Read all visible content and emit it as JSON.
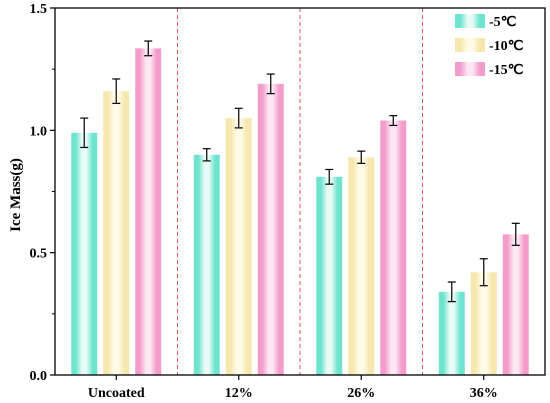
{
  "chart_data": {
    "type": "bar",
    "categories": [
      "Uncoated",
      "12%",
      "26%",
      "36%"
    ],
    "ylabel": "Ice Mass(g)",
    "xlabel": "",
    "ylim": [
      0,
      1.5
    ],
    "yticks": [
      "0.0",
      "0.5",
      "1.0",
      "1.5"
    ],
    "legend_position": "top-right",
    "series": [
      {
        "name": "-5℃",
        "values": [
          0.99,
          0.9,
          0.81,
          0.34
        ],
        "errors": [
          0.06,
          0.025,
          0.03,
          0.04
        ],
        "color_light": "#e8fbf6",
        "color_dark": "#6ee3cf"
      },
      {
        "name": "-10℃",
        "values": [
          1.16,
          1.05,
          0.89,
          0.42
        ],
        "errors": [
          0.05,
          0.04,
          0.025,
          0.055
        ],
        "color_light": "#fffbe8",
        "color_dark": "#f5e7ad"
      },
      {
        "name": "-15℃",
        "values": [
          1.335,
          1.19,
          1.04,
          0.575
        ],
        "errors": [
          0.03,
          0.04,
          0.02,
          0.045
        ],
        "color_light": "#fde7f3",
        "color_dark": "#f39ccc"
      }
    ],
    "separator_color": "#e05050"
  }
}
